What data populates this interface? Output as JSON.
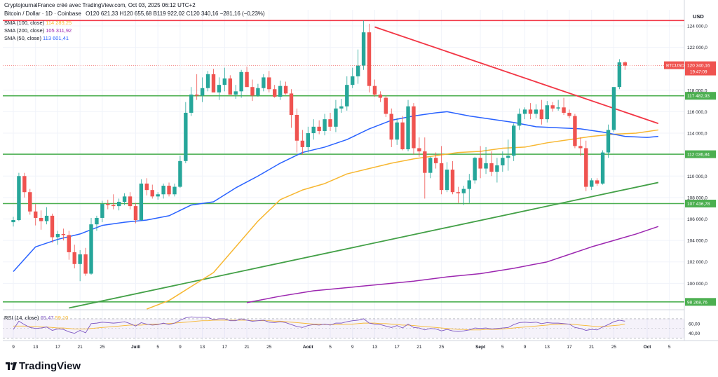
{
  "header": {
    "source": "CryptojournalFrance créé avec TradingView.com, Oct 03, 2025 06:12 UTC+2",
    "symbol": "Bitcoin / Dollar · 1D · Coinbase",
    "ohlc": "O120 621,33  H120 655,68  B119 922,02  C120 340,16  −281,16 (−0,23%)",
    "sma100_label": "SMA (100, close)",
    "sma100_value": "114 289,25",
    "sma200_label": "SMA (200, close)",
    "sma200_value": "105 311,92",
    "sma50_label": "SMA (50, close)",
    "sma50_value": "113 601,41",
    "rsi_label": "RSI (14, close)",
    "rsi_value": "65,47",
    "rsi_ma": "59,10"
  },
  "brand": "TradingView",
  "colors": {
    "up": "#26a69a",
    "down": "#ef5350",
    "sma50": "#2962ff",
    "sma100": "#f7b731",
    "sma200": "#9c27b0",
    "trend_red": "#f23645",
    "trend_green": "#43a047",
    "resistance_green": "#4caf50",
    "rsi": "#7e57c2"
  },
  "chart_data": {
    "type": "candlestick",
    "currency_label": "USD",
    "symbol_tag": "BTCUSD",
    "last_price_label": "120 340,16",
    "countdown": "19:47:09",
    "ylim": [
      97800,
      125500
    ],
    "y_ticks": [
      100000,
      102000,
      104000,
      106000,
      108000,
      110000,
      112000,
      114000,
      116000,
      118000,
      120000,
      122000,
      124000
    ],
    "y_tick_labels": [
      "100 000,0",
      "102 000,0",
      "104 000,0",
      "106 000,0",
      "108 000,0",
      "110 000,0",
      "112 000,0",
      "114 000,0",
      "116 000,0",
      "118 000,0",
      "120 000,0",
      "122 000,0",
      "124 000,0"
    ],
    "x_ticks": [
      {
        "day": 0,
        "label": "9"
      },
      {
        "day": 4,
        "label": "13"
      },
      {
        "day": 8,
        "label": "17"
      },
      {
        "day": 12,
        "label": "21"
      },
      {
        "day": 16,
        "label": "25"
      },
      {
        "day": 22,
        "label": "Juill"
      },
      {
        "day": 26,
        "label": "5"
      },
      {
        "day": 30,
        "label": "9"
      },
      {
        "day": 34,
        "label": "13"
      },
      {
        "day": 38,
        "label": "17"
      },
      {
        "day": 42,
        "label": "21"
      },
      {
        "day": 46,
        "label": "25"
      },
      {
        "day": 53,
        "label": "Août"
      },
      {
        "day": 57,
        "label": "5"
      },
      {
        "day": 61,
        "label": "9"
      },
      {
        "day": 65,
        "label": "13"
      },
      {
        "day": 69,
        "label": "17"
      },
      {
        "day": 73,
        "label": "21"
      },
      {
        "day": 77,
        "label": "25"
      },
      {
        "day": 84,
        "label": "Sept"
      },
      {
        "day": 88,
        "label": "5"
      },
      {
        "day": 92,
        "label": "9"
      },
      {
        "day": 96,
        "label": "13"
      },
      {
        "day": 100,
        "label": "17"
      },
      {
        "day": 104,
        "label": "21"
      },
      {
        "day": 108,
        "label": "25"
      },
      {
        "day": 114,
        "label": "Oct"
      },
      {
        "day": 118,
        "label": "5"
      }
    ],
    "horizontal_levels": [
      {
        "value": 124500,
        "label": "",
        "color": "#f23645"
      },
      {
        "value": 117482.93,
        "label": "117 482,93",
        "color": "#4caf50"
      },
      {
        "value": 112036.84,
        "label": "112 036,84",
        "color": "#4caf50"
      },
      {
        "value": 107436.78,
        "label": "107 436,78",
        "color": "#4caf50"
      },
      {
        "value": 98268.76,
        "label": "98 268,76",
        "color": "#4caf50"
      }
    ],
    "trendlines": [
      {
        "name": "resistance",
        "from": [
          65,
          123900
        ],
        "to": [
          116,
          114900
        ],
        "color": "#f23645"
      },
      {
        "name": "support",
        "from": [
          10,
          97700
        ],
        "to": [
          116,
          109400
        ],
        "color": "#43a047"
      }
    ],
    "candles_ohlc": [
      [
        105700,
        106200,
        105300,
        105900
      ],
      [
        105900,
        110300,
        105800,
        110000
      ],
      [
        110000,
        110300,
        108000,
        108500
      ],
      [
        108500,
        108800,
        106400,
        106700
      ],
      [
        106700,
        107400,
        105400,
        106100
      ],
      [
        106100,
        106800,
        105000,
        105800
      ],
      [
        105800,
        107100,
        105500,
        106300
      ],
      [
        106300,
        106500,
        103800,
        104300
      ],
      [
        104300,
        104900,
        103600,
        104600
      ],
      [
        104600,
        105100,
        104000,
        104500
      ],
      [
        104500,
        104900,
        102200,
        102900
      ],
      [
        102900,
        103600,
        101400,
        101800
      ],
      [
        101800,
        103100,
        100200,
        102700
      ],
      [
        102700,
        103300,
        100700,
        100900
      ],
      [
        100900,
        106100,
        100800,
        105500
      ],
      [
        105500,
        106300,
        104900,
        106100
      ],
      [
        106100,
        107700,
        105700,
        107400
      ],
      [
        107400,
        107800,
        106900,
        107300
      ],
      [
        107300,
        108300,
        106900,
        107200
      ],
      [
        107200,
        107900,
        106800,
        107600
      ],
      [
        107600,
        108400,
        107300,
        108100
      ],
      [
        108100,
        108500,
        106900,
        107200
      ],
      [
        107200,
        107500,
        105600,
        105900
      ],
      [
        105900,
        109700,
        105800,
        109300
      ],
      [
        109300,
        109800,
        108200,
        108700
      ],
      [
        108700,
        109200,
        107900,
        108100
      ],
      [
        108100,
        108500,
        107800,
        108300
      ],
      [
        108300,
        109300,
        107900,
        109100
      ],
      [
        109100,
        109400,
        108100,
        108300
      ],
      [
        108300,
        109300,
        108100,
        109000
      ],
      [
        109000,
        111900,
        108900,
        111400
      ],
      [
        111400,
        116900,
        111200,
        115900
      ],
      [
        115900,
        118300,
        115600,
        117600
      ],
      [
        117600,
        119500,
        117100,
        117500
      ],
      [
        117500,
        119200,
        116900,
        118200
      ],
      [
        118200,
        119800,
        117900,
        119500
      ],
      [
        119500,
        120000,
        117900,
        117800
      ],
      [
        117800,
        119200,
        117100,
        118500
      ],
      [
        118500,
        120100,
        117900,
        119100
      ],
      [
        119100,
        119400,
        117700,
        117600
      ],
      [
        117600,
        118500,
        117200,
        117900
      ],
      [
        117900,
        119900,
        117300,
        119700
      ],
      [
        119700,
        120200,
        118400,
        118300
      ],
      [
        118300,
        119000,
        117000,
        117500
      ],
      [
        117500,
        118600,
        117400,
        118200
      ],
      [
        118200,
        119500,
        117900,
        119200
      ],
      [
        119200,
        119800,
        117800,
        118100
      ],
      [
        118100,
        118500,
        117300,
        117400
      ],
      [
        117400,
        118900,
        117100,
        118400
      ],
      [
        118400,
        118800,
        117600,
        117700
      ],
      [
        117700,
        118100,
        114500,
        115700
      ],
      [
        115700,
        116300,
        112200,
        113300
      ],
      [
        113300,
        114300,
        112000,
        112700
      ],
      [
        112700,
        114600,
        112200,
        114000
      ],
      [
        114000,
        115300,
        113400,
        114600
      ],
      [
        114600,
        115200,
        113900,
        114200
      ],
      [
        114200,
        115800,
        113800,
        115300
      ],
      [
        115300,
        115900,
        114200,
        114600
      ],
      [
        114600,
        117100,
        114100,
        116300
      ],
      [
        116300,
        117200,
        115900,
        116500
      ],
      [
        116500,
        119300,
        116100,
        118500
      ],
      [
        118500,
        120100,
        118200,
        119300
      ],
      [
        119300,
        121800,
        118600,
        120300
      ],
      [
        120300,
        124500,
        119900,
        123400
      ],
      [
        123400,
        124200,
        117800,
        118400
      ],
      [
        118400,
        119000,
        117400,
        117600
      ],
      [
        117600,
        117900,
        116900,
        117300
      ],
      [
        117300,
        117500,
        115500,
        115800
      ],
      [
        115800,
        116300,
        112700,
        113400
      ],
      [
        113400,
        115400,
        112900,
        115000
      ],
      [
        115000,
        115600,
        112400,
        112500
      ],
      [
        112500,
        117100,
        112300,
        116500
      ],
      [
        116500,
        116800,
        112000,
        112600
      ],
      [
        112600,
        113600,
        111800,
        112300
      ],
      [
        112300,
        113600,
        107900,
        110300
      ],
      [
        110300,
        111800,
        109800,
        111700
      ],
      [
        111700,
        112200,
        110700,
        111200
      ],
      [
        111200,
        112800,
        108300,
        108700
      ],
      [
        108700,
        111300,
        108500,
        110600
      ],
      [
        110600,
        111400,
        108300,
        108500
      ],
      [
        108500,
        109000,
        107500,
        108400
      ],
      [
        108400,
        109100,
        107300,
        108800
      ],
      [
        108800,
        110200,
        107500,
        109600
      ],
      [
        109600,
        111800,
        109300,
        111700
      ],
      [
        111700,
        112800,
        109800,
        110700
      ],
      [
        110700,
        112700,
        110200,
        111200
      ],
      [
        111200,
        112300,
        110000,
        110400
      ],
      [
        110400,
        111700,
        109400,
        111000
      ],
      [
        111000,
        112300,
        110400,
        111700
      ],
      [
        111700,
        113400,
        110500,
        111900
      ],
      [
        111900,
        114900,
        111400,
        114700
      ],
      [
        114700,
        116300,
        114300,
        115800
      ],
      [
        115800,
        116400,
        115300,
        116200
      ],
      [
        116200,
        116800,
        115300,
        115800
      ],
      [
        115800,
        116700,
        115400,
        116200
      ],
      [
        116200,
        117100,
        114800,
        115300
      ],
      [
        115300,
        117000,
        115000,
        116600
      ],
      [
        116600,
        116900,
        116000,
        116300
      ],
      [
        116300,
        117100,
        116100,
        116400
      ],
      [
        116400,
        117300,
        115700,
        115900
      ],
      [
        115900,
        116200,
        115400,
        115600
      ],
      [
        115600,
        115800,
        112600,
        112800
      ],
      [
        112800,
        113600,
        111900,
        112600
      ],
      [
        112600,
        113300,
        108600,
        109000
      ],
      [
        109000,
        109800,
        108700,
        109600
      ],
      [
        109600,
        109800,
        109100,
        109300
      ],
      [
        109300,
        112400,
        109200,
        112200
      ],
      [
        112200,
        114800,
        111700,
        114300
      ],
      [
        114300,
        118300,
        114100,
        118300
      ],
      [
        118300,
        120900,
        118100,
        120600
      ],
      [
        120600,
        120700,
        119900,
        120300
      ]
    ],
    "sma50": [
      [
        0,
        101100
      ],
      [
        4,
        103400
      ],
      [
        8,
        104100
      ],
      [
        12,
        104600
      ],
      [
        16,
        105400
      ],
      [
        20,
        105700
      ],
      [
        24,
        105900
      ],
      [
        28,
        106300
      ],
      [
        32,
        107300
      ],
      [
        36,
        107600
      ],
      [
        40,
        108900
      ],
      [
        44,
        110000
      ],
      [
        48,
        111200
      ],
      [
        52,
        112200
      ],
      [
        56,
        112700
      ],
      [
        60,
        113400
      ],
      [
        64,
        114400
      ],
      [
        68,
        115200
      ],
      [
        72,
        115600
      ],
      [
        76,
        115900
      ],
      [
        78,
        116000
      ],
      [
        82,
        115600
      ],
      [
        86,
        115300
      ],
      [
        90,
        115000
      ],
      [
        94,
        114600
      ],
      [
        98,
        114500
      ],
      [
        102,
        114400
      ],
      [
        106,
        114100
      ],
      [
        110,
        113700
      ],
      [
        114,
        113600
      ],
      [
        116,
        113700
      ]
    ],
    "sma100": [
      [
        24,
        97600
      ],
      [
        28,
        98400
      ],
      [
        32,
        99700
      ],
      [
        36,
        101000
      ],
      [
        40,
        103400
      ],
      [
        44,
        105800
      ],
      [
        48,
        107800
      ],
      [
        52,
        108700
      ],
      [
        56,
        109300
      ],
      [
        60,
        110200
      ],
      [
        64,
        110700
      ],
      [
        68,
        111200
      ],
      [
        72,
        111600
      ],
      [
        76,
        111900
      ],
      [
        80,
        112200
      ],
      [
        84,
        112300
      ],
      [
        88,
        112600
      ],
      [
        92,
        112700
      ],
      [
        96,
        113100
      ],
      [
        100,
        113400
      ],
      [
        104,
        113700
      ],
      [
        108,
        113900
      ],
      [
        112,
        114000
      ],
      [
        116,
        114300
      ]
    ],
    "sma200": [
      [
        42,
        98200
      ],
      [
        48,
        98800
      ],
      [
        54,
        99300
      ],
      [
        60,
        99600
      ],
      [
        66,
        99900
      ],
      [
        72,
        100200
      ],
      [
        78,
        100600
      ],
      [
        84,
        100900
      ],
      [
        90,
        101400
      ],
      [
        96,
        102000
      ],
      [
        100,
        102700
      ],
      [
        104,
        103400
      ],
      [
        108,
        104000
      ],
      [
        112,
        104600
      ],
      [
        116,
        105300
      ]
    ],
    "rsi": {
      "ylim": [
        25,
        80
      ],
      "y_ticks": [
        40,
        60
      ],
      "y_tick_labels": [
        "40,00",
        "60,00"
      ],
      "band": [
        30,
        70
      ],
      "values": [
        48,
        65,
        58,
        52,
        50,
        51,
        53,
        46,
        49,
        48,
        43,
        40,
        46,
        41,
        60,
        61,
        63,
        62,
        61,
        62,
        64,
        60,
        55,
        62,
        59,
        57,
        58,
        61,
        58,
        61,
        67,
        72,
        74,
        73,
        73,
        73,
        68,
        70,
        70,
        66,
        66,
        70,
        67,
        65,
        66,
        67,
        63,
        62,
        64,
        62,
        58,
        54,
        52,
        56,
        58,
        57,
        59,
        57,
        61,
        61,
        64,
        66,
        67,
        70,
        61,
        59,
        58,
        55,
        52,
        56,
        51,
        59,
        52,
        51,
        47,
        50,
        49,
        45,
        48,
        45,
        44,
        45,
        47,
        51,
        50,
        51,
        49,
        50,
        51,
        52,
        58,
        62,
        63,
        62,
        63,
        60,
        62,
        61,
        61,
        60,
        59,
        52,
        50,
        46,
        48,
        47,
        53,
        58,
        64,
        67,
        65
      ],
      "ma": [
        55,
        55,
        55,
        54,
        54,
        53,
        53,
        52,
        51,
        51,
        50,
        49,
        49,
        49,
        50,
        51,
        52,
        53,
        54,
        55,
        56,
        57,
        57,
        57,
        58,
        59,
        59,
        60,
        60,
        61,
        62,
        63,
        64,
        65,
        66,
        66,
        67,
        67,
        67,
        67,
        67,
        67,
        67,
        66,
        66,
        66,
        66,
        65,
        65,
        64,
        63,
        62,
        61,
        60,
        59,
        59,
        58,
        58,
        58,
        58,
        59,
        59,
        60,
        61,
        61,
        61,
        60,
        60,
        59,
        58,
        57,
        57,
        56,
        55,
        54,
        53,
        52,
        51,
        50,
        49,
        48,
        48,
        47,
        47,
        47,
        48,
        48,
        48,
        49,
        50,
        51,
        52,
        53,
        54,
        55,
        56,
        57,
        58,
        59,
        59,
        59,
        58,
        57,
        56,
        55,
        54,
        54,
        55,
        56,
        57,
        59
      ]
    }
  }
}
